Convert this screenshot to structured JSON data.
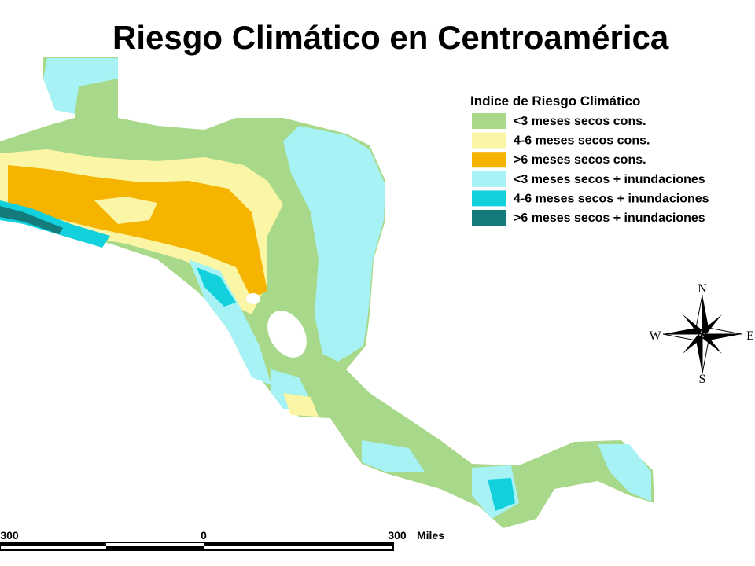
{
  "title": "Riesgo Climático en Centroamérica",
  "legend": {
    "title": "Indice de Riesgo Climático",
    "items": [
      {
        "label": "<3 meses secos cons.",
        "color": "#a8d88a"
      },
      {
        "label": "4-6 meses secos cons.",
        "color": "#fbf5a6"
      },
      {
        "label": ">6 meses secos cons.",
        "color": "#f5b400"
      },
      {
        "label": "<3 meses secos + inundaciones",
        "color": "#a6f2f4"
      },
      {
        "label": "4-6 meses secos + inundaciones",
        "color": "#12d0dc"
      },
      {
        "label": ">6 meses secos + inundaciones",
        "color": "#137b7c"
      }
    ]
  },
  "compass": {
    "n": "N",
    "s": "S",
    "e": "E",
    "w": "W"
  },
  "scale": {
    "left": "300",
    "center": "0",
    "right": "300",
    "unit": "Miles"
  }
}
